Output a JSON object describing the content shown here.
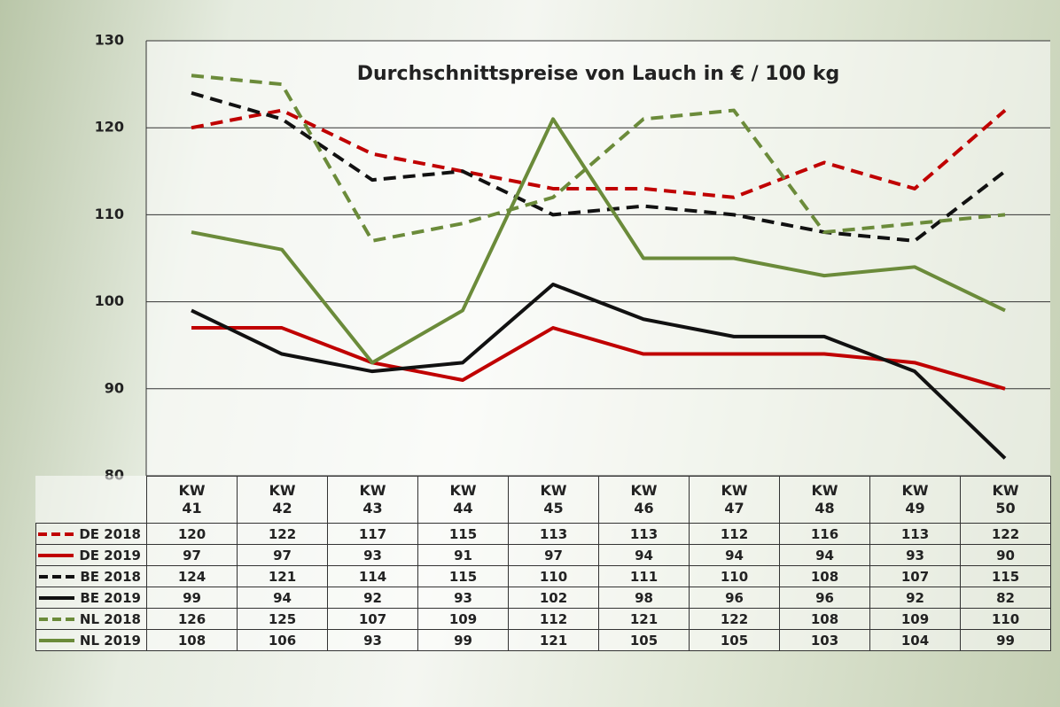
{
  "chart_data": {
    "type": "line",
    "title": "Durchschnittspreise von Lauch in € / 100 kg",
    "categories": [
      "KW\n41",
      "KW\n42",
      "KW\n43",
      "KW\n44",
      "KW\n45",
      "KW\n46",
      "KW\n47",
      "KW\n48",
      "KW\n49",
      "KW\n50"
    ],
    "series": [
      {
        "name": "DE 2018",
        "color": "#c00000",
        "line_style": "dashed",
        "values": [
          120,
          122,
          117,
          115,
          113,
          113,
          112,
          116,
          113,
          122
        ]
      },
      {
        "name": "DE 2019",
        "color": "#c00000",
        "line_style": "solid",
        "values": [
          97,
          97,
          93,
          91,
          97,
          94,
          94,
          94,
          93,
          90
        ]
      },
      {
        "name": "BE 2018",
        "color": "#111111",
        "line_style": "dashed",
        "values": [
          124,
          121,
          114,
          115,
          110,
          111,
          110,
          108,
          107,
          115
        ]
      },
      {
        "name": "BE 2019",
        "color": "#111111",
        "line_style": "solid",
        "values": [
          99,
          94,
          92,
          93,
          102,
          98,
          96,
          96,
          92,
          82
        ]
      },
      {
        "name": "NL 2018",
        "color": "#6b8b3a",
        "line_style": "dashed",
        "values": [
          126,
          125,
          107,
          109,
          112,
          121,
          122,
          108,
          109,
          110
        ]
      },
      {
        "name": "NL 2019",
        "color": "#6b8b3a",
        "line_style": "solid",
        "values": [
          108,
          106,
          93,
          99,
          121,
          105,
          105,
          103,
          104,
          99
        ]
      }
    ],
    "ylim": [
      80,
      130
    ],
    "yticks": [
      80,
      90,
      100,
      110,
      120,
      130
    ],
    "grid": true
  }
}
